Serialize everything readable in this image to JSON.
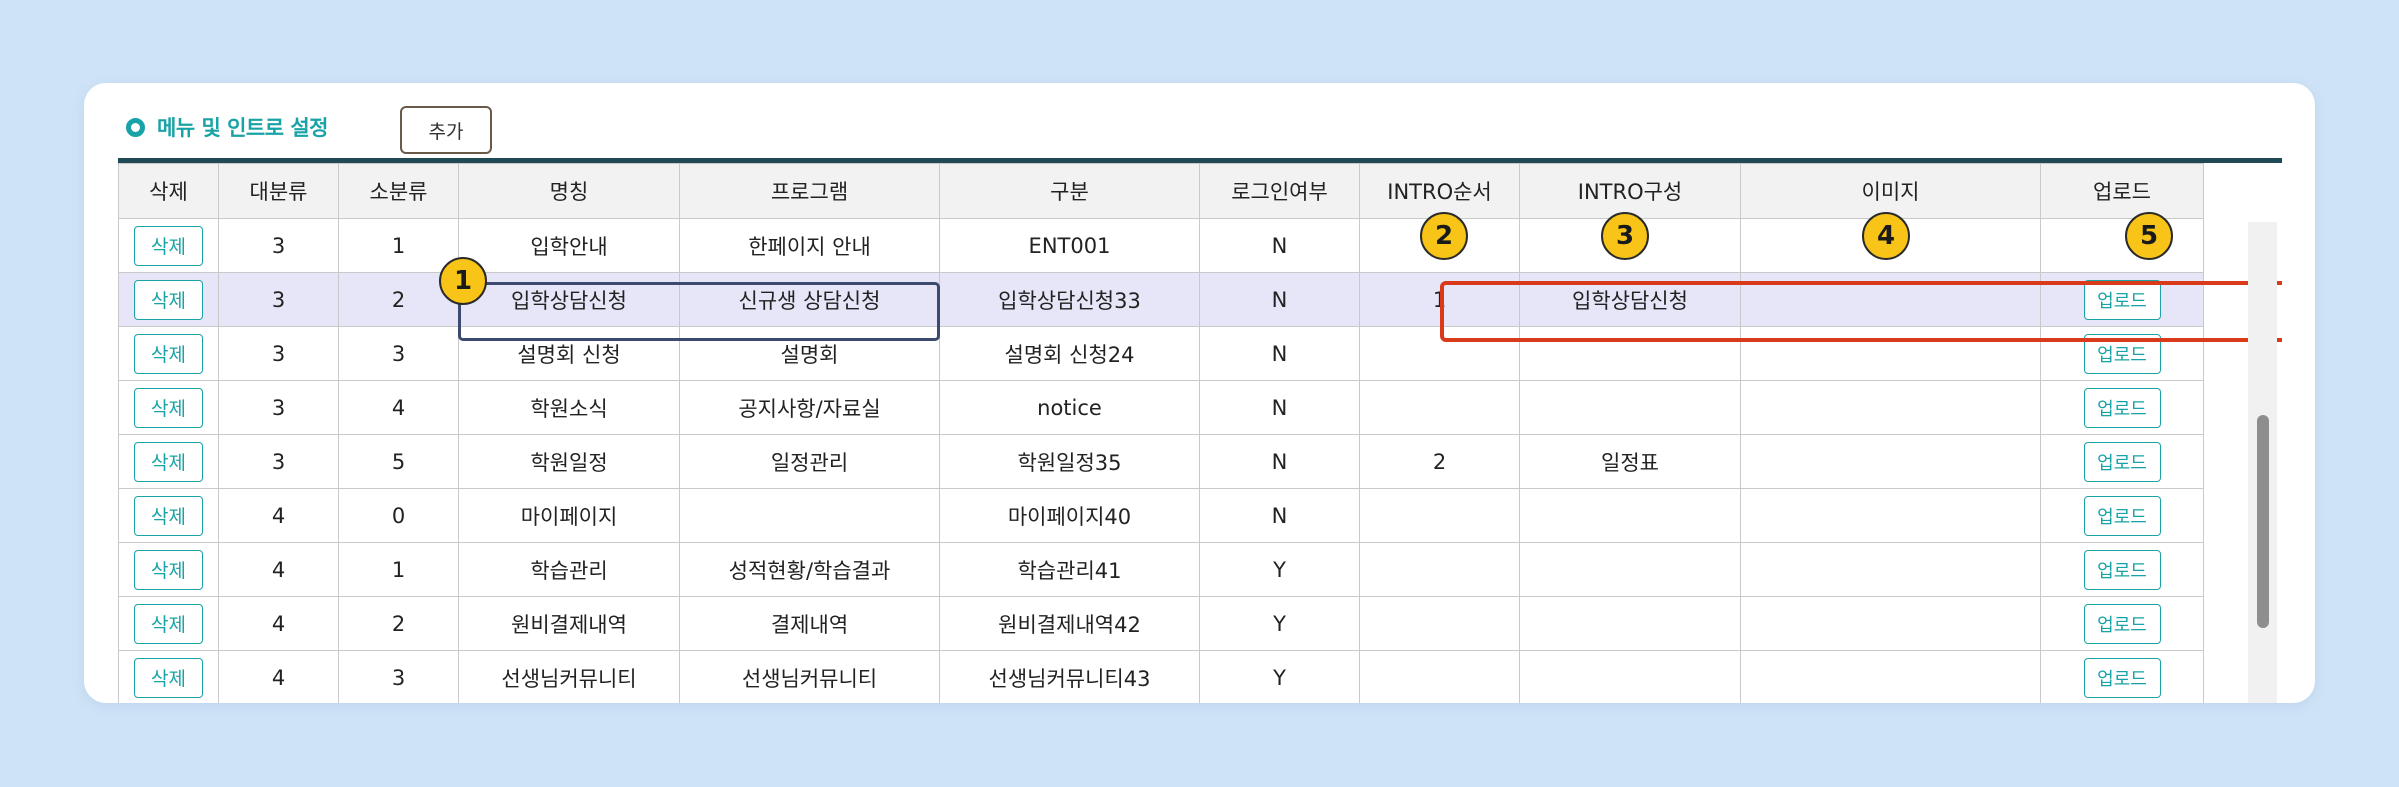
{
  "section": {
    "title": "메뉴 및 인트로 설정",
    "add_label": "추가"
  },
  "table": {
    "headers": [
      "삭제",
      "대분류",
      "소분류",
      "명칭",
      "프로그램",
      "구분",
      "로그인여부",
      "INTRO순서",
      "INTRO구성",
      "이미지",
      "업로드"
    ],
    "rows": [
      {
        "delete": "삭제",
        "major": "3",
        "minor": "1",
        "name": "입학안내",
        "program": "한페이지 안내",
        "type": "ENT001",
        "login": "N",
        "intro_order": "",
        "intro_config": "",
        "image": "",
        "upload": ""
      },
      {
        "delete": "삭제",
        "major": "3",
        "minor": "2",
        "name": "입학상담신청",
        "program": "신규생 상담신청",
        "type": "입학상담신청33",
        "login": "N",
        "intro_order": "1",
        "intro_config": "입학상담신청",
        "image": "",
        "upload": "업로드"
      },
      {
        "delete": "삭제",
        "major": "3",
        "minor": "3",
        "name": "설명회 신청",
        "program": "설명회",
        "type": "설명회 신청24",
        "login": "N",
        "intro_order": "",
        "intro_config": "",
        "image": "",
        "upload": "업로드"
      },
      {
        "delete": "삭제",
        "major": "3",
        "minor": "4",
        "name": "학원소식",
        "program": "공지사항/자료실",
        "type": "notice",
        "login": "N",
        "intro_order": "",
        "intro_config": "",
        "image": "",
        "upload": "업로드"
      },
      {
        "delete": "삭제",
        "major": "3",
        "minor": "5",
        "name": "학원일정",
        "program": "일정관리",
        "type": "학원일정35",
        "login": "N",
        "intro_order": "2",
        "intro_config": "일정표",
        "image": "",
        "upload": "업로드"
      },
      {
        "delete": "삭제",
        "major": "4",
        "minor": "0",
        "name": "마이페이지",
        "program": "",
        "type": "마이페이지40",
        "login": "N",
        "intro_order": "",
        "intro_config": "",
        "image": "",
        "upload": "업로드"
      },
      {
        "delete": "삭제",
        "major": "4",
        "minor": "1",
        "name": "학습관리",
        "program": "성적현황/학습결과",
        "type": "학습관리41",
        "login": "Y",
        "intro_order": "",
        "intro_config": "",
        "image": "",
        "upload": "업로드"
      },
      {
        "delete": "삭제",
        "major": "4",
        "minor": "2",
        "name": "원비결제내역",
        "program": "결제내역",
        "type": "원비결제내역42",
        "login": "Y",
        "intro_order": "",
        "intro_config": "",
        "image": "",
        "upload": "업로드"
      },
      {
        "delete": "삭제",
        "major": "4",
        "minor": "3",
        "name": "선생님커뮤니티",
        "program": "선생님커뮤니티",
        "type": "선생님커뮤니티43",
        "login": "Y",
        "intro_order": "",
        "intro_config": "",
        "image": "",
        "upload": "업로드"
      }
    ],
    "selected_row": 1
  },
  "annotations": {
    "badges": [
      "1",
      "2",
      "3",
      "4",
      "5"
    ],
    "colors": {
      "badge": "#f7c417",
      "navy_box": "#3b4a6e",
      "red_box": "#d93a1a"
    }
  },
  "colors": {
    "accent": "#1aa3a6",
    "header_line": "#1f4a55",
    "background": "#cfe3f8",
    "selected_row": "#e6e6f8"
  }
}
